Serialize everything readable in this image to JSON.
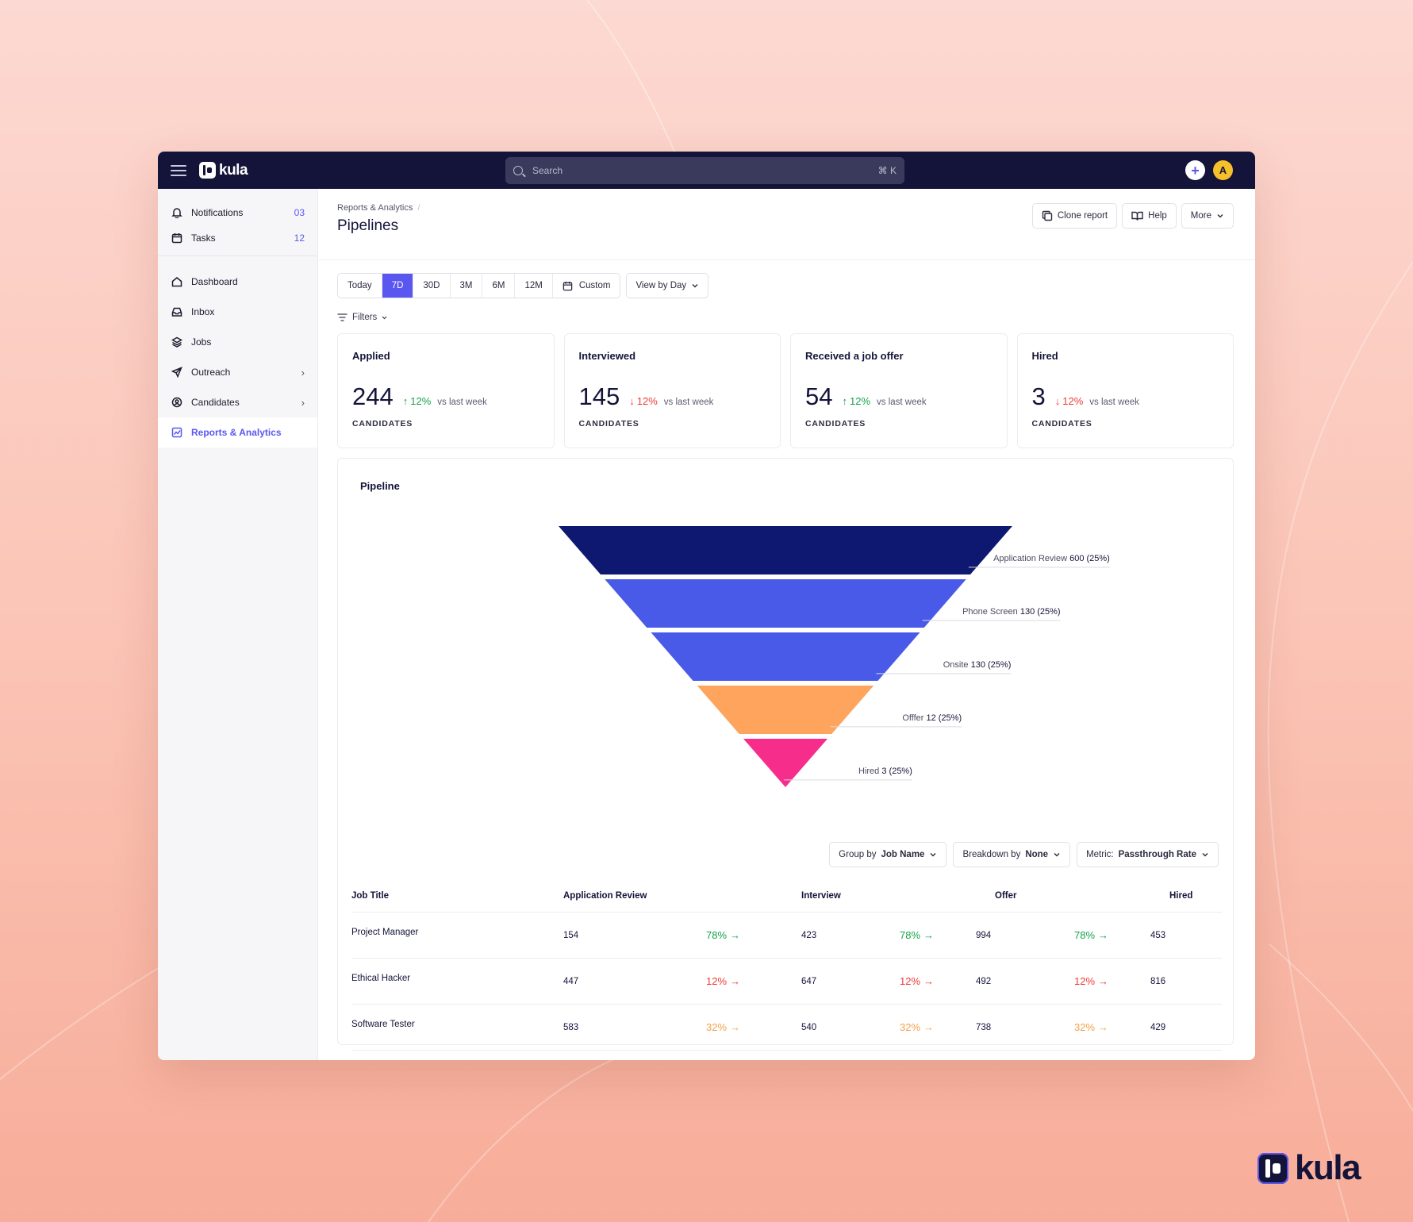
{
  "app": {
    "name": "kula",
    "brand_name": "kula"
  },
  "colors": {
    "accent": "#5a57f0",
    "topbar": "#14143a",
    "up": "#16a34a",
    "down": "#ef3b34",
    "warn": "#f5a04a"
  },
  "search": {
    "placeholder": "Search",
    "shortcut": "⌘ K"
  },
  "user": {
    "initial": "A"
  },
  "sidebar": {
    "top": [
      {
        "label": "Notifications",
        "count": "03",
        "icon": "bell-icon"
      },
      {
        "label": "Tasks",
        "count": "12",
        "icon": "calendar-icon"
      }
    ],
    "nav": [
      {
        "label": "Dashboard",
        "icon": "home-icon"
      },
      {
        "label": "Inbox",
        "icon": "inbox-icon"
      },
      {
        "label": "Jobs",
        "icon": "layers-icon"
      },
      {
        "label": "Outreach",
        "icon": "send-icon"
      },
      {
        "label": "Candidates",
        "icon": "user-circle-icon"
      },
      {
        "label": "Reports & Analytics",
        "icon": "chart-icon",
        "active": true
      }
    ]
  },
  "header": {
    "breadcrumb": "Reports & Analytics",
    "breadcrumb_sep": "/",
    "title": "Pipelines",
    "actions": {
      "clone": "Clone report",
      "help": "Help",
      "more": "More"
    }
  },
  "toolbar": {
    "ranges": [
      "Today",
      "7D",
      "30D",
      "3M",
      "6M",
      "12M"
    ],
    "active_range": "7D",
    "custom": "Custom",
    "view_by": "View by Day",
    "filters": "Filters"
  },
  "kpis": [
    {
      "title": "Applied",
      "value": "244",
      "delta": "12%",
      "direction": "up",
      "compare": "vs last week",
      "unit": "CANDIDATES"
    },
    {
      "title": "Interviewed",
      "value": "145",
      "delta": "12%",
      "direction": "down",
      "compare": "vs last week",
      "unit": "CANDIDATES"
    },
    {
      "title": "Received a job offer",
      "value": "54",
      "delta": "12%",
      "direction": "up",
      "compare": "vs last week",
      "unit": "CANDIDATES"
    },
    {
      "title": "Hired",
      "value": "3",
      "delta": "12%",
      "direction": "down",
      "compare": "vs last week",
      "unit": "CANDIDATES"
    }
  ],
  "pipeline": {
    "title": "Pipeline",
    "stages": [
      {
        "name": "Application Review",
        "value": "600 (25%)",
        "color": "#0e1870"
      },
      {
        "name": "Phone Screen",
        "value": "130 (25%)",
        "color": "#4a5ae8"
      },
      {
        "name": "Onsite",
        "value": "130 (25%)",
        "color": "#4a5ae8"
      },
      {
        "name": "Offfer",
        "value": "12 (25%)",
        "color": "#ffa45c"
      },
      {
        "name": "Hired",
        "value": "3 (25%)",
        "color": "#f72d8c"
      }
    ],
    "group_by": {
      "prefix": "Group by",
      "value": "Job Name"
    },
    "breakdown": {
      "prefix": "Breakdown by",
      "value": "None"
    },
    "metric": {
      "prefix": "Metric:",
      "value": "Passthrough Rate"
    }
  },
  "table": {
    "columns": [
      "Job Title",
      "Application Review",
      "Interview",
      "Offer",
      "Hired"
    ],
    "rows": [
      {
        "title": "Project Manager",
        "app": "154",
        "p1": "78%",
        "interview": "423",
        "p2": "78%",
        "offer": "994",
        "p3": "78%",
        "hired": "453",
        "tone": "green"
      },
      {
        "title": "Ethical Hacker",
        "app": "447",
        "p1": "12%",
        "interview": "647",
        "p2": "12%",
        "offer": "492",
        "p3": "12%",
        "hired": "816",
        "tone": "red"
      },
      {
        "title": "Software Tester",
        "app": "583",
        "p1": "32%",
        "interview": "540",
        "p2": "32%",
        "offer": "738",
        "p3": "32%",
        "hired": "429",
        "tone": "orange"
      }
    ]
  }
}
